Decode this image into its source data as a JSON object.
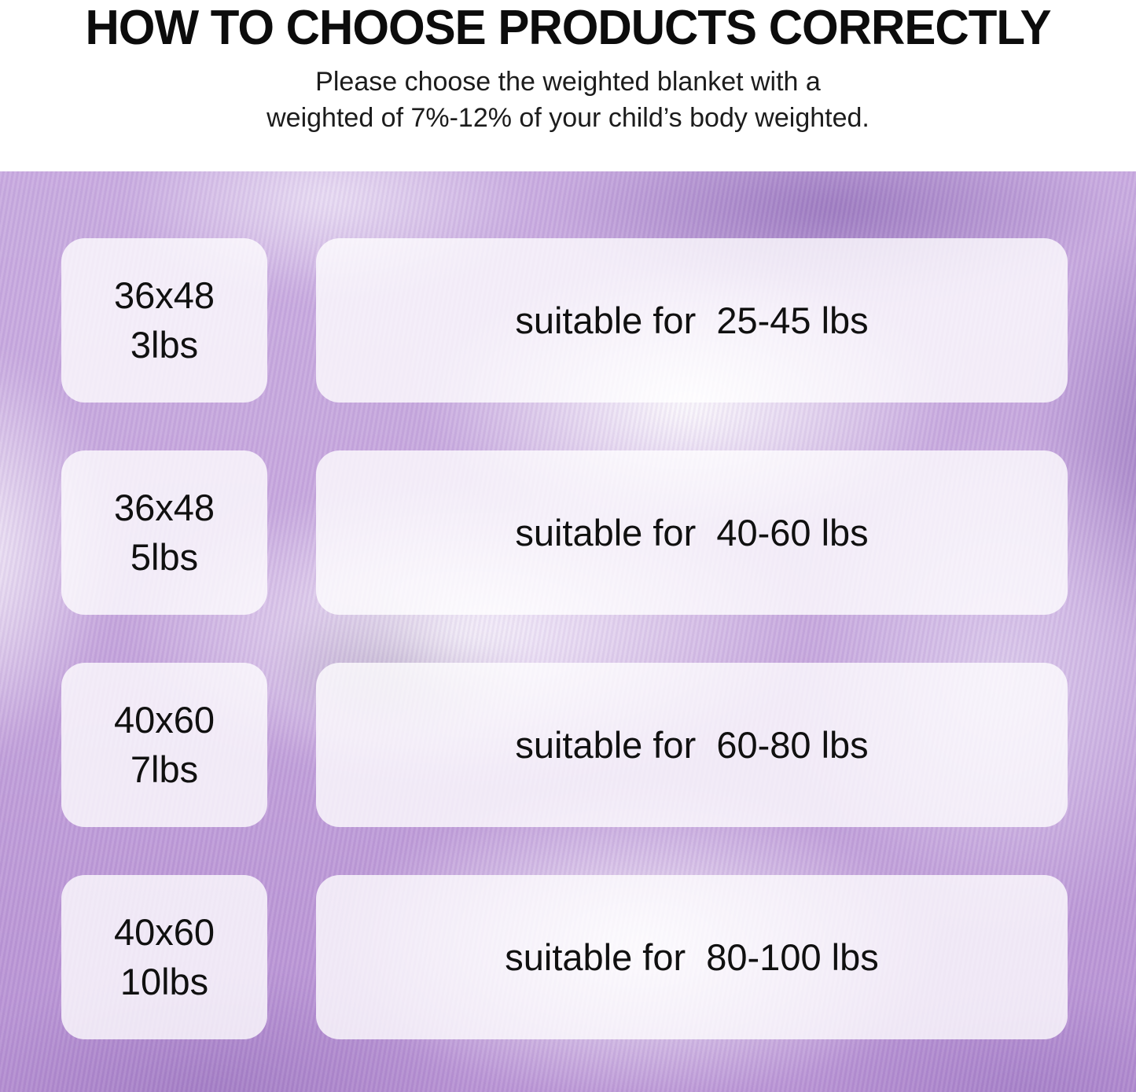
{
  "header": {
    "title": "HOW TO CHOOSE PRODUCTS CORRECTLY",
    "subtitle_line1": "Please choose the weighted blanket with a",
    "subtitle_line2": "weighted of 7%-12% of your child’s body weighted."
  },
  "size_chart": {
    "rows": [
      {
        "size": "36x48",
        "weight": "3lbs",
        "suitable": "suitable for  25-45 lbs"
      },
      {
        "size": "36x48",
        "weight": "5lbs",
        "suitable": "suitable for  40-60 lbs"
      },
      {
        "size": "40x60",
        "weight": "7lbs",
        "suitable": "suitable for  60-80 lbs"
      },
      {
        "size": "40x60",
        "weight": "10lbs",
        "suitable": "suitable for  80-100 lbs"
      }
    ]
  },
  "chart_data": {
    "type": "table",
    "title": "HOW TO CHOOSE PRODUCTS CORRECTLY",
    "subtitle": "Please choose the weighted blanket with a weighted of 7%-12% of your child’s body weighted.",
    "rows": [
      {
        "blanket_size": "36x48",
        "blanket_weight_lbs": 3,
        "suitable_label": "suitable for  25-45 lbs",
        "suitable_body_weight_lbs": [
          25,
          45
        ]
      },
      {
        "blanket_size": "36x48",
        "blanket_weight_lbs": 5,
        "suitable_label": "suitable for  40-60 lbs",
        "suitable_body_weight_lbs": [
          40,
          60
        ]
      },
      {
        "blanket_size": "40x60",
        "blanket_weight_lbs": 7,
        "suitable_label": "suitable for  60-80 lbs",
        "suitable_body_weight_lbs": [
          60,
          80
        ]
      },
      {
        "blanket_size": "40x60",
        "blanket_weight_lbs": 10,
        "suitable_label": "suitable for  80-100 lbs",
        "suitable_body_weight_lbs": [
          80,
          100
        ]
      }
    ]
  },
  "colors": {
    "title_text": "#0c0c0c",
    "body_text": "#101010",
    "header_background": "#ffffff",
    "card_background": "rgba(255,255,255,0.78)",
    "fabric_light": "#cdb2e3",
    "fabric_mid": "#b28bd2",
    "fabric_dark_fold": "#5a3d7a",
    "fabric_highlight": "#f7f3fb"
  }
}
